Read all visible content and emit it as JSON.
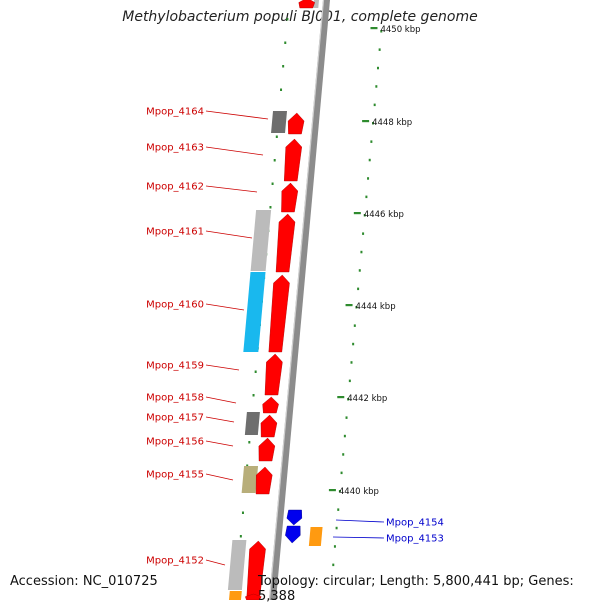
{
  "title": "Methylobacterium populi BJ001, complete genome",
  "footer": {
    "accession": "Accession: NC_010725",
    "topology": "Topology: circular; Length: 5,800,441 bp; Genes: 5,388"
  },
  "colors": {
    "forward_cds": "#ff0000",
    "reverse_cds": "#0000ee",
    "label_forward": "#cc0000",
    "label_reverse": "#0000cc",
    "backbone": "#8c8c8c",
    "tick": "#2e8b2e",
    "gray_block": "#bbbbbb",
    "dark_block": "#6e6e6e",
    "cyan_block": "#19b8ee",
    "khaki_block": "#b8ae7a",
    "orange_block": "#ff9a10"
  },
  "scale": {
    "ticks": [
      {
        "label": "4450 kbp"
      },
      {
        "label": "4448 kbp"
      },
      {
        "label": "4446 kbp"
      },
      {
        "label": "4444 kbp"
      },
      {
        "label": "4442 kbp"
      },
      {
        "label": "4440 kbp"
      }
    ]
  },
  "genes_forward": [
    {
      "label": "Mpop_4164"
    },
    {
      "label": "Mpop_4163"
    },
    {
      "label": "Mpop_4162"
    },
    {
      "label": "Mpop_4161"
    },
    {
      "label": "Mpop_4160"
    },
    {
      "label": "Mpop_4159"
    },
    {
      "label": "Mpop_4158"
    },
    {
      "label": "Mpop_4157"
    },
    {
      "label": "Mpop_4156"
    },
    {
      "label": "Mpop_4155"
    },
    {
      "label": "Mpop_4152"
    }
  ],
  "genes_reverse": [
    {
      "label": "Mpop_4154"
    },
    {
      "label": "Mpop_4153"
    }
  ]
}
